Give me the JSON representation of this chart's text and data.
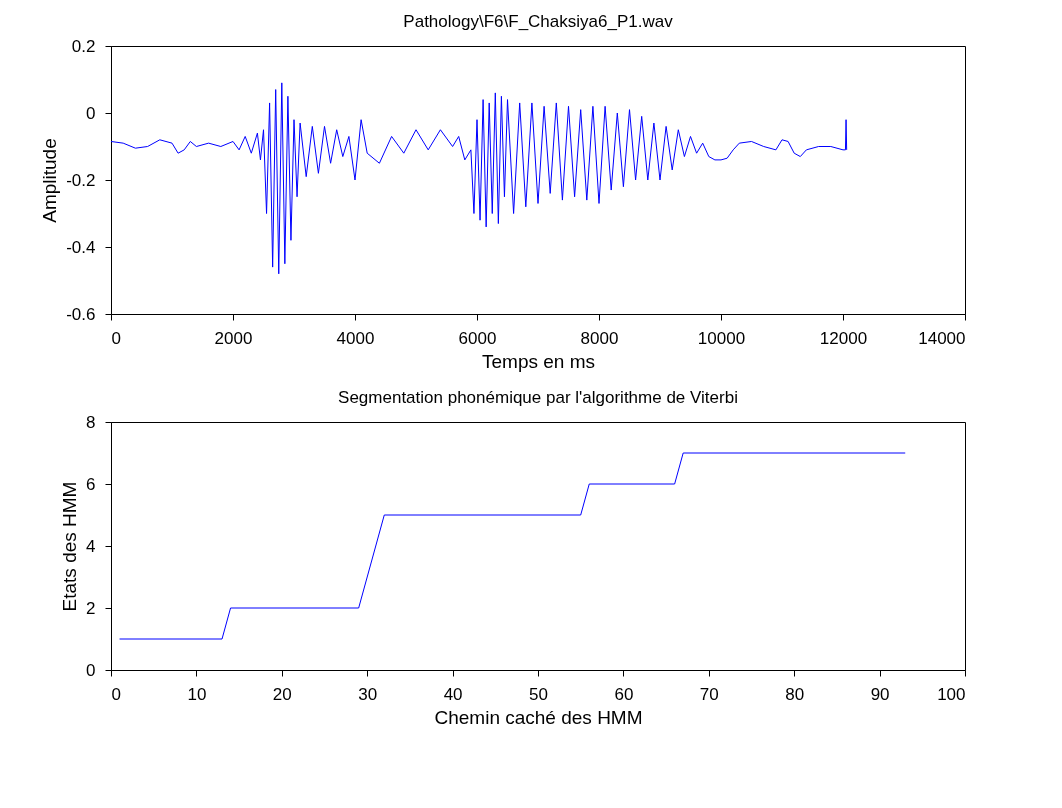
{
  "chart_data": [
    {
      "type": "line",
      "title": "Pathology\\F6\\F_Chaksiya6_P1.wav",
      "xlabel": "Temps en ms",
      "ylabel": "Amplitude",
      "xlim": [
        0,
        14000
      ],
      "ylim": [
        -0.6,
        0.2
      ],
      "xticks": [
        0,
        2000,
        4000,
        6000,
        8000,
        10000,
        12000,
        14000
      ],
      "yticks": [
        -0.6,
        -0.4,
        -0.2,
        0,
        0.2
      ],
      "grid": false,
      "series": [
        {
          "color": "#0000ff",
          "x": [
            0,
            200,
            400,
            600,
            800,
            1000,
            1100,
            1200,
            1300,
            1400,
            1600,
            1800,
            2000,
            2100,
            2200,
            2300,
            2400,
            2450,
            2500,
            2550,
            2600,
            2650,
            2700,
            2750,
            2800,
            2850,
            2900,
            2950,
            3000,
            3050,
            3100,
            3200,
            3300,
            3400,
            3500,
            3600,
            3700,
            3800,
            3900,
            4000,
            4100,
            4200,
            4400,
            4600,
            4800,
            5000,
            5200,
            5400,
            5600,
            5700,
            5800,
            5900,
            5950,
            6000,
            6050,
            6100,
            6150,
            6200,
            6250,
            6300,
            6350,
            6400,
            6450,
            6500,
            6600,
            6700,
            6800,
            6900,
            7000,
            7100,
            7200,
            7300,
            7400,
            7500,
            7600,
            7700,
            7800,
            7900,
            8000,
            8100,
            8200,
            8300,
            8400,
            8500,
            8600,
            8700,
            8800,
            8900,
            9000,
            9100,
            9200,
            9300,
            9400,
            9500,
            9600,
            9700,
            9800,
            9900,
            10000,
            10100,
            10200,
            10300,
            10500,
            10700,
            10900,
            11000,
            11100,
            11200,
            11300,
            11400,
            11600,
            11800,
            12000,
            12040,
            12050,
            12060
          ],
          "values": [
            -0.085,
            -0.09,
            -0.105,
            -0.1,
            -0.08,
            -0.09,
            -0.12,
            -0.11,
            -0.085,
            -0.1,
            -0.09,
            -0.1,
            -0.085,
            -0.11,
            -0.07,
            -0.12,
            -0.06,
            -0.14,
            -0.05,
            -0.3,
            0.03,
            -0.46,
            0.07,
            -0.48,
            0.09,
            -0.45,
            0.05,
            -0.38,
            -0.02,
            -0.25,
            -0.03,
            -0.19,
            -0.04,
            -0.18,
            -0.04,
            -0.15,
            -0.05,
            -0.13,
            -0.07,
            -0.2,
            -0.02,
            -0.12,
            -0.15,
            -0.07,
            -0.12,
            -0.05,
            -0.11,
            -0.05,
            -0.1,
            -0.07,
            -0.14,
            -0.11,
            -0.3,
            -0.02,
            -0.32,
            0.04,
            -0.34,
            0.03,
            -0.3,
            0.06,
            -0.33,
            0.05,
            -0.25,
            0.04,
            -0.3,
            0.03,
            -0.28,
            0.03,
            -0.27,
            0.02,
            -0.24,
            0.03,
            -0.26,
            0.02,
            -0.25,
            0.01,
            -0.26,
            0.02,
            -0.27,
            0.02,
            -0.23,
            0.0,
            -0.22,
            0.01,
            -0.2,
            -0.01,
            -0.2,
            -0.03,
            -0.2,
            -0.04,
            -0.17,
            -0.05,
            -0.13,
            -0.07,
            -0.12,
            -0.09,
            -0.13,
            -0.14,
            -0.14,
            -0.135,
            -0.11,
            -0.09,
            -0.085,
            -0.1,
            -0.11,
            -0.08,
            -0.085,
            -0.12,
            -0.13,
            -0.11,
            -0.1,
            -0.1,
            -0.11,
            -0.11,
            -0.02,
            -0.11
          ]
        }
      ]
    },
    {
      "type": "line",
      "title": "Segmentation phonémique par l'algorithme de Viterbi",
      "xlabel": "Chemin caché des HMM",
      "ylabel": "Etats des HMM",
      "xlim": [
        0,
        100
      ],
      "ylim": [
        0,
        8
      ],
      "xticks": [
        0,
        10,
        20,
        30,
        40,
        50,
        60,
        70,
        80,
        90,
        100
      ],
      "yticks": [
        0,
        2,
        4,
        6,
        8
      ],
      "grid": false,
      "series": [
        {
          "color": "#0000ff",
          "x": [
            1,
            13,
            14,
            29,
            30,
            31,
            32,
            55,
            56,
            66,
            67,
            93
          ],
          "values": [
            1,
            1,
            2,
            2,
            3,
            4,
            5,
            5,
            6,
            6,
            7,
            7
          ]
        }
      ]
    }
  ]
}
